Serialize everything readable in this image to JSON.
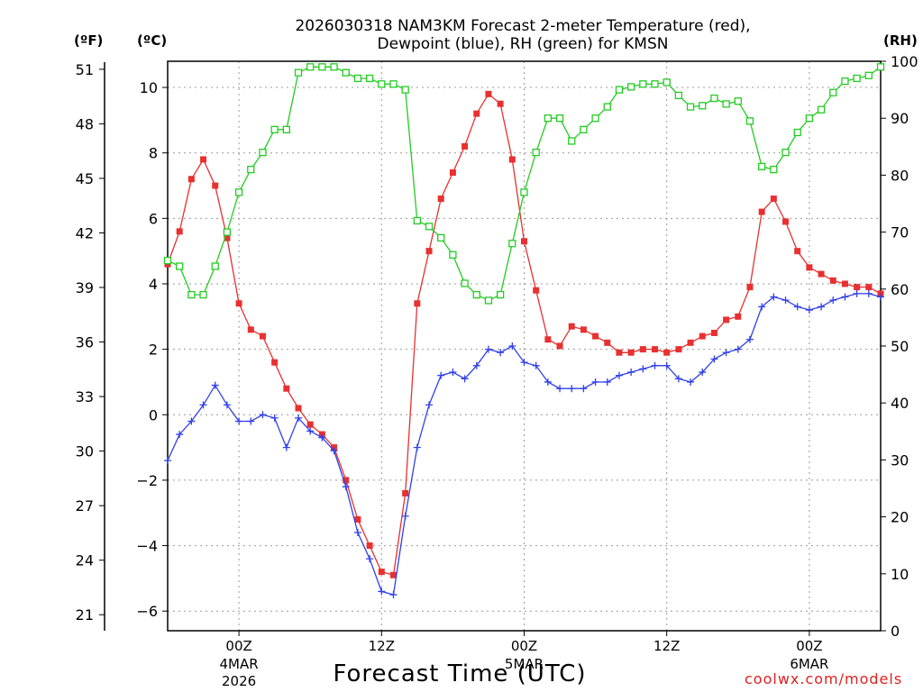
{
  "header": {
    "title_line1": "2026030318 NAM3KM Forecast 2-meter Temperature (red),",
    "title_line2": "Dewpoint (blue), RH (green) for KMSN"
  },
  "units": {
    "fahrenheit": "(ºF)",
    "celsius": "(ºC)",
    "rh": "(RH)"
  },
  "footer": {
    "xlabel": "Forecast Time (UTC)",
    "credit": "coolwx.com/models"
  },
  "chart_data": {
    "type": "line",
    "title": "2026030318 NAM3KM Forecast 2-meter Temperature (red), Dewpoint (blue), RH (green) for KMSN",
    "xlabel": "Forecast Time (UTC)",
    "x_hours_from_start": [
      0,
      1,
      2,
      3,
      4,
      5,
      6,
      7,
      8,
      9,
      10,
      11,
      12,
      13,
      14,
      15,
      16,
      17,
      18,
      19,
      20,
      21,
      22,
      23,
      24,
      25,
      26,
      27,
      28,
      29,
      30,
      31,
      32,
      33,
      34,
      35,
      36,
      37,
      38,
      39,
      40,
      41,
      42,
      43,
      44,
      45,
      46,
      47,
      48,
      49,
      50,
      51,
      52,
      53,
      54,
      55,
      56,
      57,
      58,
      59,
      60
    ],
    "x_ticks": [
      {
        "hour": 6,
        "label": "00Z",
        "date": "4MAR",
        "year": "2026"
      },
      {
        "hour": 18,
        "label": "12Z"
      },
      {
        "hour": 30,
        "label": "00Z",
        "date": "5MAR"
      },
      {
        "hour": 42,
        "label": "12Z"
      },
      {
        "hour": 54,
        "label": "00Z",
        "date": "6MAR"
      }
    ],
    "ylim_celsius": [
      -6.6,
      10.8
    ],
    "yticks_celsius": [
      -6,
      -4,
      -2,
      0,
      2,
      4,
      6,
      8,
      10
    ],
    "yticks_fahrenheit": [
      21,
      24,
      27,
      30,
      33,
      36,
      39,
      42,
      45,
      48,
      51
    ],
    "ylim_rh": [
      0,
      100
    ],
    "yticks_rh": [
      0,
      10,
      20,
      30,
      40,
      50,
      60,
      70,
      80,
      90,
      100
    ],
    "grid": true,
    "series": [
      {
        "name": "Temperature",
        "color": "#e83030",
        "marker": "filled-square",
        "axis": "celsius",
        "values": [
          4.6,
          5.6,
          7.2,
          7.8,
          7.0,
          5.4,
          3.4,
          2.6,
          2.4,
          1.6,
          0.8,
          0.2,
          -0.3,
          -0.6,
          -1.0,
          -2.0,
          -3.2,
          -4.0,
          -4.8,
          -4.9,
          -2.4,
          3.4,
          5.0,
          6.6,
          7.4,
          8.2,
          9.2,
          9.8,
          9.5,
          7.8,
          5.3,
          3.8,
          2.3,
          2.1,
          2.7,
          2.6,
          2.4,
          2.2,
          1.9,
          1.9,
          2.0,
          2.0,
          1.9,
          2.0,
          2.2,
          2.4,
          2.5,
          2.9,
          3.0,
          3.9,
          6.2,
          6.6,
          5.9,
          5.0,
          4.5,
          4.3,
          4.1,
          4.0,
          3.9,
          3.9,
          3.7
        ]
      },
      {
        "name": "Dewpoint",
        "color": "#3040e8",
        "marker": "plus",
        "axis": "celsius",
        "values": [
          -1.4,
          -0.6,
          -0.2,
          0.3,
          0.9,
          0.3,
          -0.2,
          -0.2,
          0.0,
          -0.1,
          -1.0,
          -0.1,
          -0.5,
          -0.7,
          -1.1,
          -2.2,
          -3.6,
          -4.4,
          -5.4,
          -5.5,
          -3.1,
          -1.0,
          0.3,
          1.2,
          1.3,
          1.1,
          1.5,
          2.0,
          1.9,
          2.1,
          1.6,
          1.5,
          1.0,
          0.8,
          0.8,
          0.8,
          1.0,
          1.0,
          1.2,
          1.3,
          1.4,
          1.5,
          1.5,
          1.1,
          1.0,
          1.3,
          1.7,
          1.9,
          2.0,
          2.3,
          3.3,
          3.6,
          3.5,
          3.3,
          3.2,
          3.3,
          3.5,
          3.6,
          3.7,
          3.7,
          3.6
        ]
      },
      {
        "name": "RH",
        "color": "#22cc22",
        "marker": "open-square",
        "axis": "rh",
        "values": [
          65,
          64,
          59,
          59,
          64,
          70,
          77,
          81,
          84,
          88,
          88,
          98,
          99,
          99,
          99,
          98,
          97,
          97,
          96,
          96,
          95,
          72,
          71,
          69,
          66,
          61,
          59,
          58,
          59,
          68,
          77,
          84,
          90,
          90,
          86,
          88,
          90,
          92,
          95,
          95.5,
          96,
          96,
          96.3,
          94,
          92,
          92.2,
          93.5,
          92.5,
          93,
          89.5,
          81.5,
          81,
          84,
          87.5,
          90,
          91.5,
          94.5,
          96.5,
          97,
          97.5,
          99
        ]
      }
    ]
  }
}
